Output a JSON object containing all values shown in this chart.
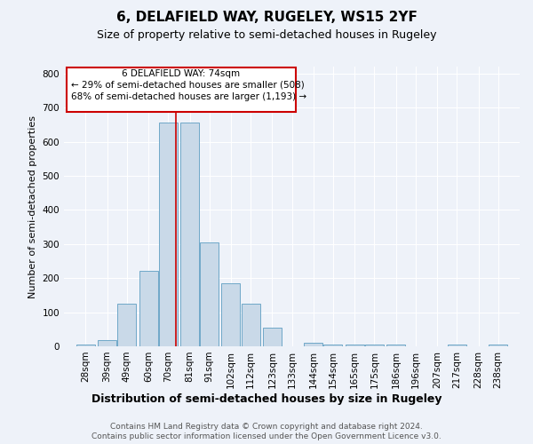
{
  "title1": "6, DELAFIELD WAY, RUGELEY, WS15 2YF",
  "title2": "Size of property relative to semi-detached houses in Rugeley",
  "xlabel": "Distribution of semi-detached houses by size in Rugeley",
  "ylabel": "Number of semi-detached properties",
  "footer1": "Contains HM Land Registry data © Crown copyright and database right 2024.",
  "footer2": "Contains public sector information licensed under the Open Government Licence v3.0.",
  "annotation_title": "6 DELAFIELD WAY: 74sqm",
  "annotation_line1": "← 29% of semi-detached houses are smaller (508)",
  "annotation_line2": "68% of semi-detached houses are larger (1,193) →",
  "bar_labels": [
    "28sqm",
    "39sqm",
    "49sqm",
    "60sqm",
    "70sqm",
    "81sqm",
    "91sqm",
    "102sqm",
    "112sqm",
    "123sqm",
    "133sqm",
    "144sqm",
    "154sqm",
    "165sqm",
    "175sqm",
    "186sqm",
    "196sqm",
    "207sqm",
    "217sqm",
    "228sqm",
    "238sqm"
  ],
  "bar_centers": [
    28,
    39,
    49,
    60,
    70,
    81,
    91,
    102,
    112,
    123,
    133,
    144,
    154,
    165,
    175,
    186,
    196,
    207,
    217,
    228,
    238
  ],
  "bar_width": 9.5,
  "bar_heights": [
    5,
    18,
    125,
    220,
    655,
    655,
    305,
    185,
    125,
    55,
    0,
    10,
    5,
    5,
    5,
    5,
    0,
    0,
    5,
    0,
    5
  ],
  "bar_color": "#c9d9e8",
  "bar_edge_color": "#6fa8c8",
  "vline_x": 74,
  "vline_color": "#cc0000",
  "annotation_box_color": "#cc0000",
  "ylim": [
    0,
    820
  ],
  "xlim": [
    17,
    249
  ],
  "yticks": [
    0,
    100,
    200,
    300,
    400,
    500,
    600,
    700,
    800
  ],
  "bg_color": "#eef2f9",
  "grid_color": "#ffffff",
  "title1_fontsize": 11,
  "title2_fontsize": 9,
  "xlabel_fontsize": 9,
  "ylabel_fontsize": 8,
  "tick_fontsize": 7.5,
  "annotation_fontsize": 7.5,
  "footer_fontsize": 6.5
}
